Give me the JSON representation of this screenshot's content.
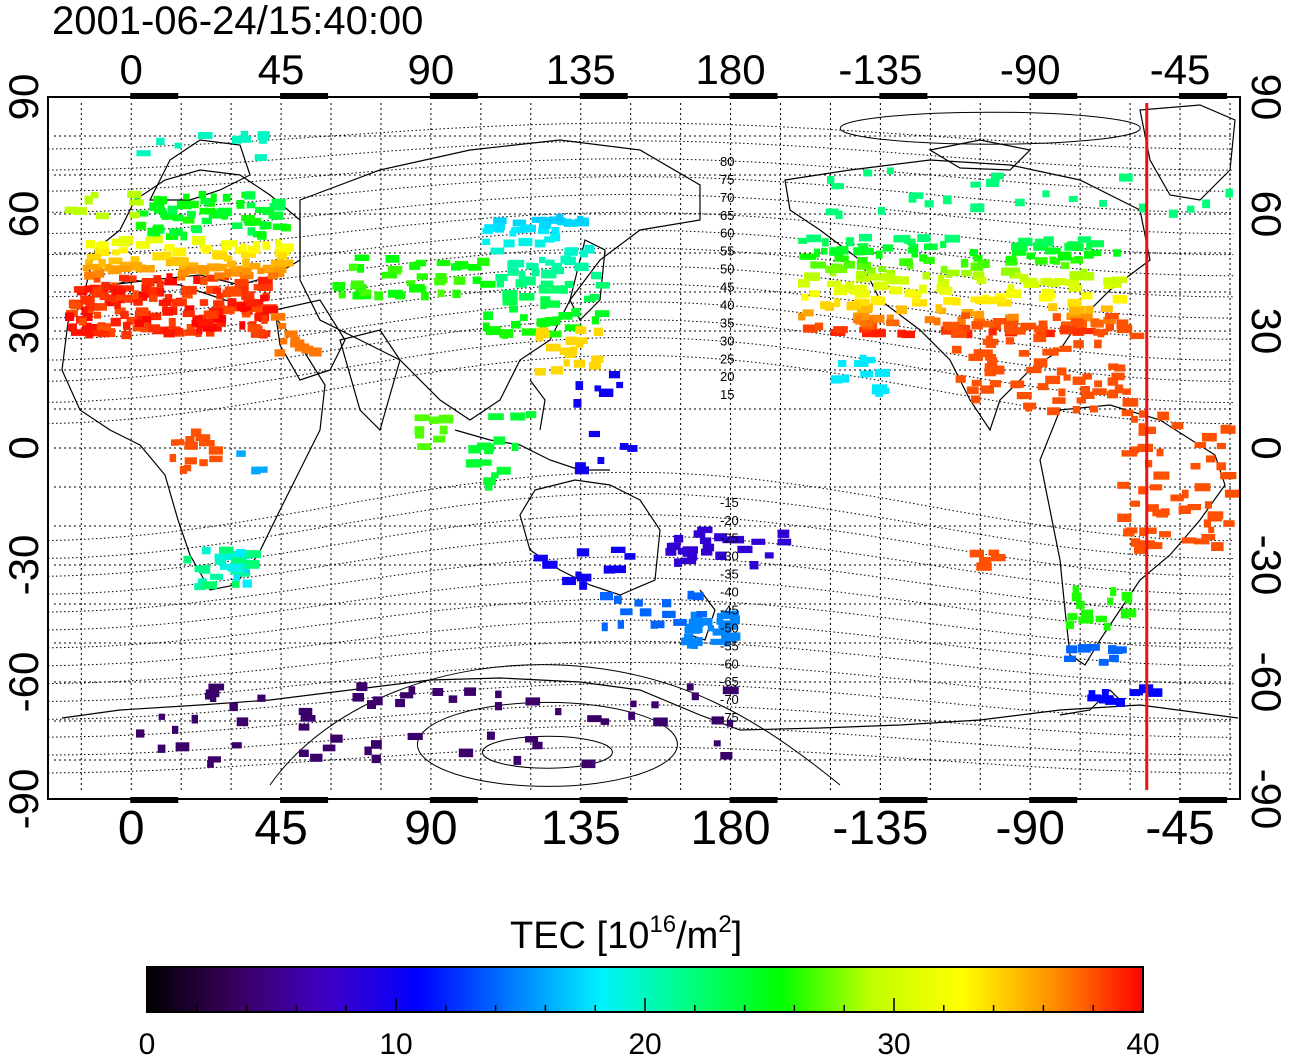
{
  "timestamp": "2001-06-24/15:40:00",
  "map": {
    "lon_ticks_top": [
      "0",
      "45",
      "90",
      "135",
      "180",
      "-135",
      "-90",
      "-45"
    ],
    "lon_ticks_bottom": [
      "0",
      "45",
      "90",
      "135",
      "180",
      "-135",
      "-90",
      "-45"
    ],
    "lat_ticks_left": [
      "90",
      "60",
      "30",
      "0",
      "-30",
      "-60",
      "-90"
    ],
    "lat_ticks_right": [
      "90",
      "60",
      "30",
      "0",
      "-30",
      "-60",
      "-90"
    ],
    "lon_tick_values": [
      0,
      45,
      90,
      135,
      180,
      225,
      270,
      315
    ],
    "lat_tick_values": [
      90,
      60,
      30,
      0,
      -30,
      -60,
      -90
    ],
    "lon_range": [
      -25,
      333
    ],
    "lat_range": [
      -90,
      90
    ],
    "terminator_lon": 305,
    "terminator_color": "#ee1111",
    "magnetic_latitude_labels": [
      "80",
      "75",
      "70",
      "65",
      "60",
      "55",
      "50",
      "45",
      "40",
      "35",
      "30",
      "25",
      "20",
      "15",
      "-15",
      "-20",
      "-25",
      "-30",
      "-35",
      "-40",
      "-45",
      "-50",
      "-55",
      "-60",
      "-65",
      "-70",
      "-75"
    ]
  },
  "tec": {
    "title": "TEC  [10",
    "title_exp": "16",
    "title_mid": "/m",
    "title_exp2": "2",
    "title_end": "]",
    "colorbar_ticks": [
      "0",
      "10",
      "20",
      "30",
      "40"
    ],
    "colorbar_values": [
      0,
      10,
      20,
      30,
      40
    ],
    "colorbar_range": [
      0,
      40
    ],
    "colorbar_stops": [
      "#000000",
      "#3a0060",
      "#4000c8",
      "#0000ff",
      "#0078ff",
      "#00f0ff",
      "#00ff80",
      "#00ff00",
      "#c0ff00",
      "#ffff00",
      "#ff9000",
      "#ff0000"
    ]
  }
}
